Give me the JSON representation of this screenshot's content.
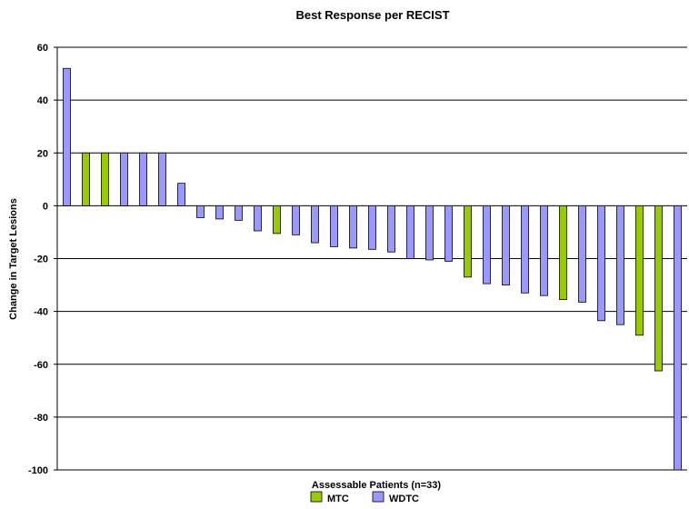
{
  "chart_data": {
    "type": "bar",
    "title": "Best Response per RECIST",
    "xlabel": "Assessable Patients (n=33)",
    "ylabel": "Change in Target Lesions",
    "ylim": [
      -100,
      60
    ],
    "yticks": [
      60,
      40,
      20,
      0,
      -20,
      -40,
      -60,
      -80,
      -100
    ],
    "grid": "horizontal",
    "legend_position": "bottom",
    "colors": {
      "MTC": "#99cc00",
      "WDTC": "#9999ff",
      "outline": "#000000"
    },
    "series": [
      {
        "name": "MTC",
        "color": "#99cc00"
      },
      {
        "name": "WDTC",
        "color": "#9999ff"
      }
    ],
    "bars": [
      {
        "patient": 1,
        "group": "WDTC",
        "value": 52
      },
      {
        "patient": 2,
        "group": "MTC",
        "value": 20
      },
      {
        "patient": 3,
        "group": "MTC",
        "value": 20
      },
      {
        "patient": 4,
        "group": "WDTC",
        "value": 20
      },
      {
        "patient": 5,
        "group": "WDTC",
        "value": 20
      },
      {
        "patient": 6,
        "group": "WDTC",
        "value": 20
      },
      {
        "patient": 7,
        "group": "WDTC",
        "value": 8.5
      },
      {
        "patient": 8,
        "group": "WDTC",
        "value": -4.5
      },
      {
        "patient": 9,
        "group": "WDTC",
        "value": -5
      },
      {
        "patient": 10,
        "group": "WDTC",
        "value": -5.5
      },
      {
        "patient": 11,
        "group": "WDTC",
        "value": -9.5
      },
      {
        "patient": 12,
        "group": "MTC",
        "value": -10.5
      },
      {
        "patient": 13,
        "group": "WDTC",
        "value": -11
      },
      {
        "patient": 14,
        "group": "WDTC",
        "value": -14
      },
      {
        "patient": 15,
        "group": "WDTC",
        "value": -15.5
      },
      {
        "patient": 16,
        "group": "WDTC",
        "value": -16
      },
      {
        "patient": 17,
        "group": "WDTC",
        "value": -16.5
      },
      {
        "patient": 18,
        "group": "WDTC",
        "value": -17.5
      },
      {
        "patient": 19,
        "group": "WDTC",
        "value": -20
      },
      {
        "patient": 20,
        "group": "WDTC",
        "value": -20.5
      },
      {
        "patient": 21,
        "group": "WDTC",
        "value": -21
      },
      {
        "patient": 22,
        "group": "MTC",
        "value": -27
      },
      {
        "patient": 23,
        "group": "WDTC",
        "value": -29.5
      },
      {
        "patient": 24,
        "group": "WDTC",
        "value": -30
      },
      {
        "patient": 25,
        "group": "WDTC",
        "value": -33
      },
      {
        "patient": 26,
        "group": "WDTC",
        "value": -34
      },
      {
        "patient": 27,
        "group": "MTC",
        "value": -35.5
      },
      {
        "patient": 28,
        "group": "WDTC",
        "value": -36.5
      },
      {
        "patient": 29,
        "group": "WDTC",
        "value": -43.5
      },
      {
        "patient": 30,
        "group": "WDTC",
        "value": -45
      },
      {
        "patient": 31,
        "group": "MTC",
        "value": -49
      },
      {
        "patient": 32,
        "group": "MTC",
        "value": -62.5
      },
      {
        "patient": 33,
        "group": "WDTC",
        "value": -100
      }
    ]
  }
}
